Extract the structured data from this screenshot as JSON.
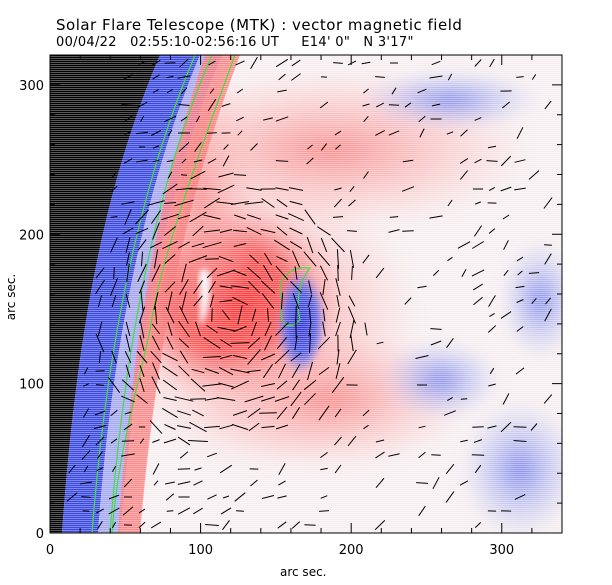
{
  "header": {
    "title": "Solar Flare Telescope (MTK) : vector magnetic field",
    "subtitle": "00/04/22   02:55:10-02:56:16 UT     E14' 0\"   N 3'17\""
  },
  "chart_data": {
    "type": "heatmap",
    "title": "Solar Flare Telescope (MTK) : vector magnetic field",
    "xlabel": "arc sec.",
    "ylabel": "arc sec.",
    "xlim": [
      0,
      340
    ],
    "ylim": [
      0,
      320
    ],
    "x_ticks": [
      0,
      100,
      200,
      300
    ],
    "y_ticks": [
      0,
      100,
      200,
      300
    ],
    "colors": {
      "positive": "#ff4040",
      "negative": "#4050e0",
      "neutral": "#f8f0f0",
      "space": "#000000",
      "contour": "#40e040",
      "vectors": "#000000"
    },
    "regions": [
      {
        "name": "positive-polarity-core",
        "x": 120,
        "y": 155,
        "strength": "strong"
      },
      {
        "name": "negative-polarity-island",
        "x": 160,
        "y": 130,
        "strength": "strong"
      },
      {
        "name": "negative-polarity-plage",
        "x": 290,
        "y": 60,
        "strength": "weak"
      },
      {
        "name": "limb-negative-band",
        "x": 40,
        "y": 150,
        "strength": "strong"
      }
    ]
  }
}
